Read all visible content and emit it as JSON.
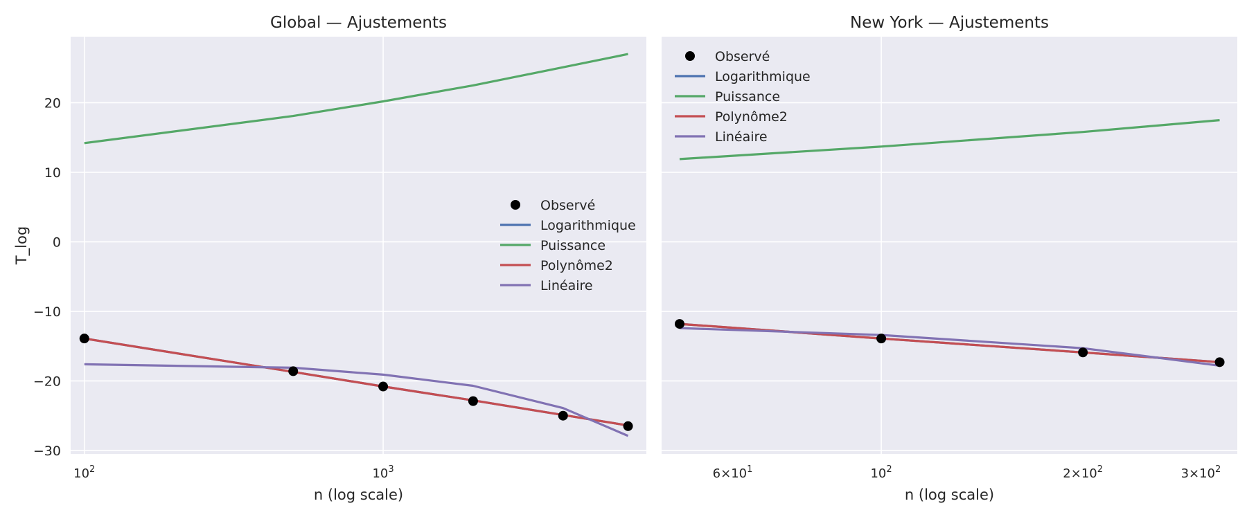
{
  "chart_data": [
    {
      "type": "line",
      "title": "Global — Ajustements",
      "xlabel": "n (log scale)",
      "ylabel": "T_log",
      "xscale": "log",
      "xlim": [
        90,
        7600
      ],
      "ylim": [
        -30.5,
        29.5
      ],
      "yticks": [
        -30,
        -20,
        -10,
        0,
        10,
        20
      ],
      "xticks": [
        {
          "value": 100,
          "base": "10",
          "exp": "2"
        },
        {
          "value": 1000,
          "base": "10",
          "exp": "3"
        }
      ],
      "grid": true,
      "legend": "center-right",
      "observed": {
        "name": "Observé",
        "x": [
          100,
          500,
          1000,
          2000,
          4000,
          6600
        ],
        "y": [
          -13.9,
          -18.6,
          -20.8,
          -22.9,
          -25.0,
          -26.5
        ]
      },
      "series": [
        {
          "name": "Logarithmique",
          "color": "#4c72b0",
          "x": [
            100,
            500,
            1000,
            2000,
            4000,
            6600
          ],
          "y": [
            -13.9,
            -18.7,
            -20.8,
            -22.8,
            -24.9,
            -26.4
          ]
        },
        {
          "name": "Puissance",
          "color": "#55a868",
          "x": [
            100,
            500,
            1000,
            2000,
            4000,
            6600
          ],
          "y": [
            14.2,
            18.1,
            20.2,
            22.5,
            25.1,
            27.0
          ]
        },
        {
          "name": "Polynôme2",
          "color": "#c44e52",
          "x": [
            100,
            500,
            1000,
            2000,
            4000,
            6600
          ],
          "y": [
            -13.9,
            -18.7,
            -20.8,
            -22.8,
            -24.9,
            -26.4
          ]
        },
        {
          "name": "Linéaire",
          "color": "#8172b3",
          "x": [
            100,
            500,
            1000,
            2000,
            4000,
            6600
          ],
          "y": [
            -17.6,
            -18.1,
            -19.1,
            -20.7,
            -23.9,
            -27.9
          ]
        }
      ]
    },
    {
      "type": "line",
      "title": "New York — Ajustements",
      "xlabel": "n (log scale)",
      "ylabel": "",
      "xscale": "log",
      "xlim": [
        47,
        340
      ],
      "ylim": [
        -30.5,
        29.5
      ],
      "yticks": [],
      "xticks": [
        {
          "value": 60,
          "coef": "6",
          "base": "10",
          "exp": "1"
        },
        {
          "value": 100,
          "base": "10",
          "exp": "2"
        },
        {
          "value": 200,
          "coef": "2",
          "base": "10",
          "exp": "2"
        },
        {
          "value": 300,
          "coef": "3",
          "base": "10",
          "exp": "2"
        }
      ],
      "grid": true,
      "legend": "upper-left",
      "observed": {
        "name": "Observé",
        "x": [
          50,
          100,
          200,
          320
        ],
        "y": [
          -11.8,
          -13.9,
          -15.9,
          -17.3
        ]
      },
      "series": [
        {
          "name": "Logarithmique",
          "color": "#4c72b0",
          "x": [
            50,
            100,
            200,
            320
          ],
          "y": [
            -11.8,
            -13.9,
            -15.9,
            -17.3
          ]
        },
        {
          "name": "Puissance",
          "color": "#55a868",
          "x": [
            50,
            100,
            200,
            320
          ],
          "y": [
            11.9,
            13.7,
            15.8,
            17.5
          ]
        },
        {
          "name": "Polynôme2",
          "color": "#c44e52",
          "x": [
            50,
            100,
            200,
            320
          ],
          "y": [
            -11.8,
            -13.9,
            -15.9,
            -17.3
          ]
        },
        {
          "name": "Linéaire",
          "color": "#8172b3",
          "x": [
            50,
            100,
            200,
            320
          ],
          "y": [
            -12.4,
            -13.4,
            -15.3,
            -17.8
          ]
        }
      ]
    }
  ]
}
